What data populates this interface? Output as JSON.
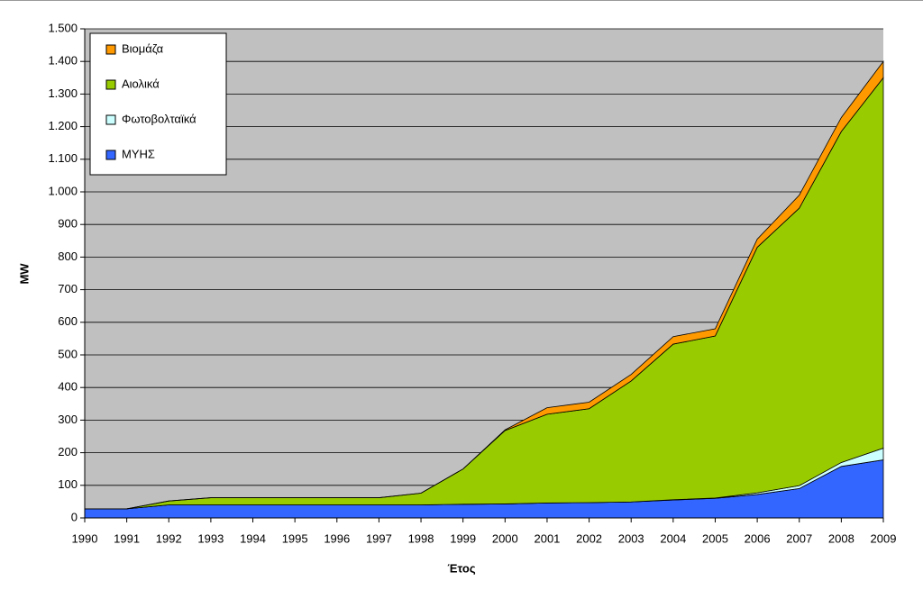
{
  "chart_data": {
    "type": "stacked-area",
    "x_label": "Έτος",
    "y_label": "MW",
    "categories": [
      "1990",
      "1991",
      "1992",
      "1993",
      "1994",
      "1995",
      "1996",
      "1997",
      "1998",
      "1999",
      "2000",
      "2001",
      "2002",
      "2003",
      "2004",
      "2005",
      "2006",
      "2007",
      "2008",
      "2009"
    ],
    "series": [
      {
        "name": "ΜΥΗΣ",
        "color": "#3366ff",
        "values": [
          28,
          28,
          40,
          40,
          40,
          40,
          40,
          40,
          40,
          42,
          43,
          46,
          47,
          49,
          55,
          60,
          72,
          90,
          158,
          178
        ]
      },
      {
        "name": "Φωτοβολταϊκά",
        "color": "#ccffff",
        "values": [
          0,
          0,
          0,
          0,
          0,
          0,
          0,
          0,
          0,
          0,
          0,
          0,
          0,
          0,
          1,
          1,
          5,
          9,
          12,
          36
        ]
      },
      {
        "name": "Αιολικά",
        "color": "#99cc00",
        "values": [
          0,
          0,
          12,
          22,
          22,
          22,
          22,
          22,
          36,
          108,
          225,
          272,
          288,
          371,
          477,
          497,
          753,
          851,
          1015,
          1136
        ]
      },
      {
        "name": "Βιομάζα",
        "color": "#ff9900",
        "values": [
          0,
          0,
          0,
          0,
          0,
          0,
          0,
          0,
          0,
          0,
          2,
          20,
          20,
          20,
          23,
          22,
          25,
          40,
          43,
          50
        ]
      }
    ],
    "ylim": [
      0,
      1500
    ],
    "yticks": [
      0,
      100,
      200,
      300,
      400,
      500,
      600,
      700,
      800,
      900,
      {
        "value": 1000,
        "label": "1.000"
      },
      {
        "value": 1100,
        "label": "1.100"
      },
      {
        "value": 1200,
        "label": "1.200"
      },
      {
        "value": 1300,
        "label": "1.300"
      },
      {
        "value": 1400,
        "label": "1.400"
      },
      {
        "value": 1500,
        "label": "1.500"
      }
    ],
    "grid": true,
    "legend": "upper left",
    "plot_background": "#c0c0c0"
  }
}
